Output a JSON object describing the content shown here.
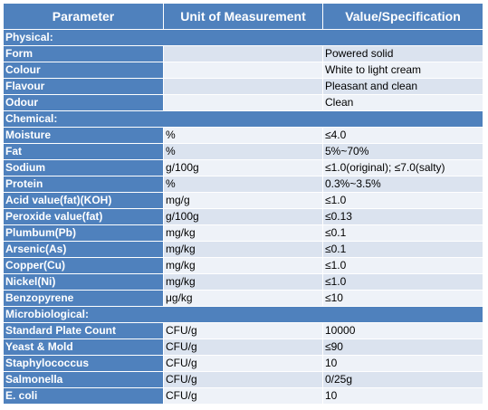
{
  "headers": {
    "parameter": "Parameter",
    "unit": "Unit of Measurement",
    "value": "Value/Specification"
  },
  "rows": [
    {
      "type": "section",
      "name": "Physical:"
    },
    {
      "name": "Form",
      "unit": "",
      "value": "Powered solid"
    },
    {
      "name": "Colour",
      "unit": "",
      "value": "White to light cream"
    },
    {
      "name": "Flavour",
      "unit": "",
      "value": "Pleasant and clean"
    },
    {
      "name": "Odour",
      "unit": "",
      "value": "Clean"
    },
    {
      "type": "section",
      "name": "Chemical:"
    },
    {
      "name": "Moisture",
      "unit": "%",
      "value": "≤4.0"
    },
    {
      "name": "Fat",
      "unit": "%",
      "value": "5%~70%"
    },
    {
      "name": "Sodium",
      "unit": "g/100g",
      "value": "≤1.0(original); ≤7.0(salty)"
    },
    {
      "name": "Protein",
      "unit": "%",
      "value": "0.3%~3.5%"
    },
    {
      "name": "Acid value(fat)(KOH)",
      "unit": "mg/g",
      "value": "≤1.0"
    },
    {
      "name": "Peroxide value(fat)",
      "unit": "g/100g",
      "value": "≤0.13"
    },
    {
      "name": "Plumbum(Pb)",
      "unit": "mg/kg",
      "value": "≤0.1"
    },
    {
      "name": "Arsenic(As)",
      "unit": "mg/kg",
      "value": "≤0.1"
    },
    {
      "name": "Copper(Cu)",
      "unit": "mg/kg",
      "value": "≤1.0"
    },
    {
      "name": "Nickel(Ni)",
      "unit": "mg/kg",
      "value": "≤1.0"
    },
    {
      "name": "Benzopyrene",
      "unit": "μg/kg",
      "value": "≤10"
    },
    {
      "type": "section",
      "name": "Microbiological:"
    },
    {
      "name": "Standard Plate Count",
      "unit": "CFU/g",
      "value": "10000"
    },
    {
      "name": "Yeast & Mold",
      "unit": "CFU/g",
      "value": "≤90"
    },
    {
      "name": "Staphylococcus",
      "unit": "CFU/g",
      "value": "10"
    },
    {
      "name": "Salmonella",
      "unit": "CFU/g",
      "value": "0/25g"
    },
    {
      "name": "E. coli",
      "unit": "CFU/g",
      "value": "10"
    }
  ]
}
